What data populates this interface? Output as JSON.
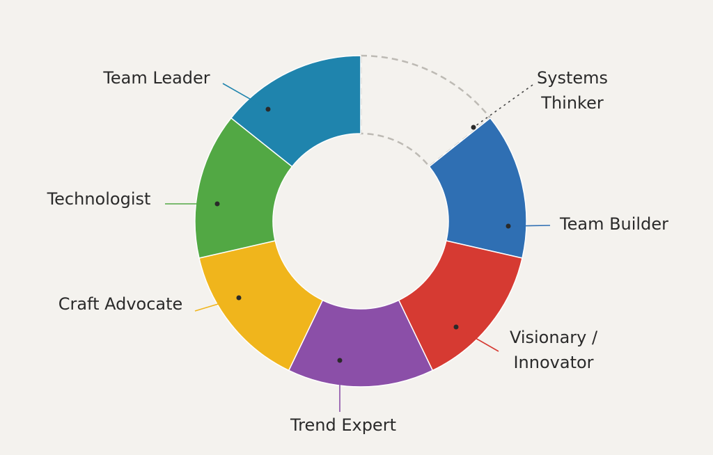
{
  "segments": [
    {
      "label": [
        "Systems",
        "Thinker"
      ],
      "color": "none",
      "outline": "dashed"
    },
    {
      "label": [
        "Team Builder"
      ],
      "color": "#2f6fb3"
    },
    {
      "label": [
        "Visionary /",
        "Innovator"
      ],
      "color": "#d63a32"
    },
    {
      "label": [
        "Trend Expert"
      ],
      "color": "#8b4fa8"
    },
    {
      "label": [
        "Craft Advocate"
      ],
      "color": "#f0b51c"
    },
    {
      "label": [
        "Technologist"
      ],
      "color": "#52a844"
    },
    {
      "label": [
        "Team Leader"
      ],
      "color": "#1f84ad"
    }
  ]
}
